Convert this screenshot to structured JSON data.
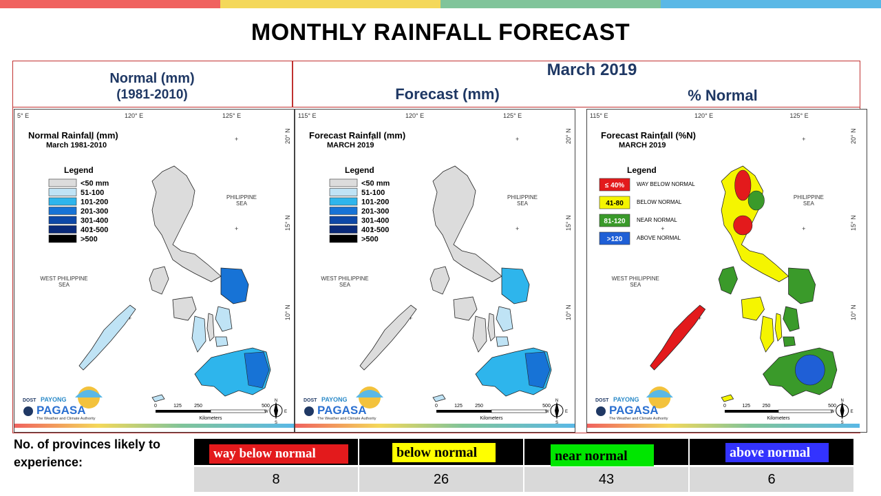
{
  "title": "MONTHLY RAINFALL FORECAST",
  "colors": {
    "bar1": "#f0625f",
    "bar2": "#f4d85a",
    "bar3": "#80c49a",
    "bar4": "#5ab8e6",
    "frame": "#c0302f",
    "heading": "#1f3864"
  },
  "headers": {
    "normal_line1": "Normal (mm)",
    "normal_line2": "(1981-2010)",
    "month": "March 2019",
    "forecast": "Forecast (mm)",
    "percent_normal": "% Normal"
  },
  "maps": [
    {
      "title": "Normal Rainfall (mm)",
      "subtitle": "March 1981-2010",
      "legend_title": "Legend",
      "legend": [
        {
          "label": "<50 mm",
          "color": "#dcdcdc"
        },
        {
          "label": "51-100",
          "color": "#bfe3f5"
        },
        {
          "label": "101-200",
          "color": "#2eb5ec"
        },
        {
          "label": "201-300",
          "color": "#1773d6"
        },
        {
          "label": "301-400",
          "color": "#0d48a8"
        },
        {
          "label": "401-500",
          "color": "#0a2a7a"
        },
        {
          "label": ">500",
          "color": "#000000"
        }
      ]
    },
    {
      "title": "Forecast Rainfall (mm)",
      "subtitle": "MARCH 2019",
      "legend_title": "Legend",
      "legend": [
        {
          "label": "<50 mm",
          "color": "#dcdcdc"
        },
        {
          "label": "51-100",
          "color": "#bfe3f5"
        },
        {
          "label": "101-200",
          "color": "#2eb5ec"
        },
        {
          "label": "201-300",
          "color": "#1773d6"
        },
        {
          "label": "301-400",
          "color": "#0d48a8"
        },
        {
          "label": "401-500",
          "color": "#0a2a7a"
        },
        {
          "label": ">500",
          "color": "#000000"
        }
      ]
    },
    {
      "title": "Forecast Rainfall (%N)",
      "subtitle": "MARCH 2019",
      "legend_title": "Legend",
      "legend": [
        {
          "label": "≤ 40%",
          "desc": "WAY BELOW NORMAL",
          "color": "#e31a1c"
        },
        {
          "label": "41-80",
          "desc": "BELOW NORMAL",
          "color": "#f5f500"
        },
        {
          "label": "81-120",
          "desc": "NEAR NORMAL",
          "color": "#3a9a2a"
        },
        {
          "label": ">120",
          "desc": "ABOVE NORMAL",
          "color": "#1f5fd6"
        }
      ]
    }
  ],
  "map_labels": {
    "philippine_sea": [
      "PHILIPPINE",
      "SEA"
    ],
    "west_philippine_sea": [
      "WEST PHILIPPINE",
      "SEA"
    ],
    "lon_labels": [
      "115° E",
      "120° E",
      "125° E"
    ],
    "lon_labels_first": "5° E",
    "lat_labels": [
      "20° N",
      "15° N",
      "10° N"
    ],
    "scale_ticks": [
      "0",
      "125",
      "250",
      "500"
    ],
    "scale_unit": "Kilometers",
    "logo_dost": "DOST",
    "logo_payong": "PAYONG",
    "logo_pagasa": "PAGASA",
    "logo_tagline": "The Weather and Climate Authority",
    "compass": [
      "N",
      "E",
      "S",
      "W"
    ]
  },
  "bottom": {
    "label": "No. of provinces likely to experience:",
    "categories": [
      {
        "label": "way below normal",
        "bg": "#e31a1c",
        "fg": "#ffffff",
        "count": "8"
      },
      {
        "label": "below normal",
        "bg": "#ffff00",
        "fg": "#000000",
        "count": "26"
      },
      {
        "label": "near normal",
        "bg": "#00e600",
        "fg": "#000000",
        "count": "43"
      },
      {
        "label": "above normal",
        "bg": "#3333ff",
        "fg": "#ffffff",
        "count": "6"
      }
    ]
  }
}
